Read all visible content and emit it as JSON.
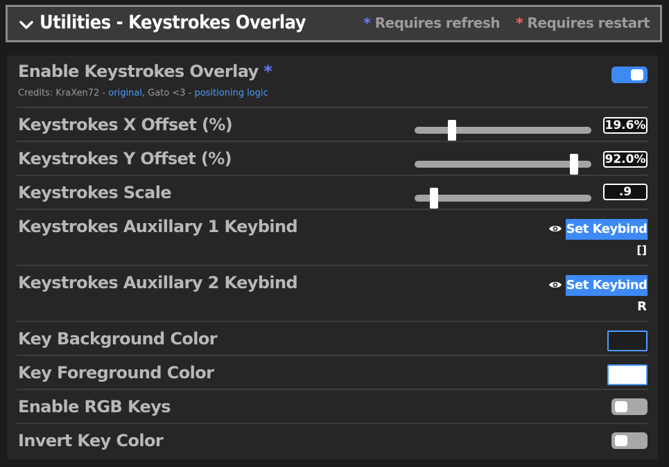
{
  "header": {
    "title": "Utilities - Keystrokes Overlay",
    "legend_refresh_star": "*",
    "legend_refresh": "Requires refresh",
    "legend_restart_star": "*",
    "legend_restart": "Requires restart"
  },
  "settings": {
    "enable_overlay": {
      "label": "Enable Keystrokes Overlay",
      "star": "*",
      "enabled": true,
      "credits_prefix": "Credits: KraXen72 - ",
      "credits_link1": "original",
      "credits_mid": ", Gato <3 - ",
      "credits_link2": "positioning logic"
    },
    "x_offset": {
      "label": "Keystrokes X Offset (%)",
      "value": "19.6%",
      "fraction": 0.196
    },
    "y_offset": {
      "label": "Keystrokes Y Offset (%)",
      "value": "92.0%",
      "fraction": 0.92
    },
    "scale": {
      "label": "Keystrokes Scale",
      "value": ".9",
      "fraction": 0.09
    },
    "aux1": {
      "label": "Keystrokes Auxillary 1 Keybind",
      "button": "Set Keybind",
      "key": "[]"
    },
    "aux2": {
      "label": "Keystrokes Auxillary 2 Keybind",
      "button": "Set Keybind",
      "key": "R"
    },
    "key_bg": {
      "label": "Key Background Color",
      "color": "#1e1e1e"
    },
    "key_fg": {
      "label": "Key Foreground Color",
      "color": "#ffffff"
    },
    "rgb_keys": {
      "label": "Enable RGB Keys",
      "enabled": false
    },
    "invert": {
      "label": "Invert Key Color",
      "enabled": false
    }
  },
  "colors": {
    "accent": "#3d8af7",
    "refresh_star": "#6a78ff",
    "restart_star": "#ff6262"
  },
  "icons": {
    "collapse": "chevron-down-icon",
    "visibility": "eye-icon"
  }
}
